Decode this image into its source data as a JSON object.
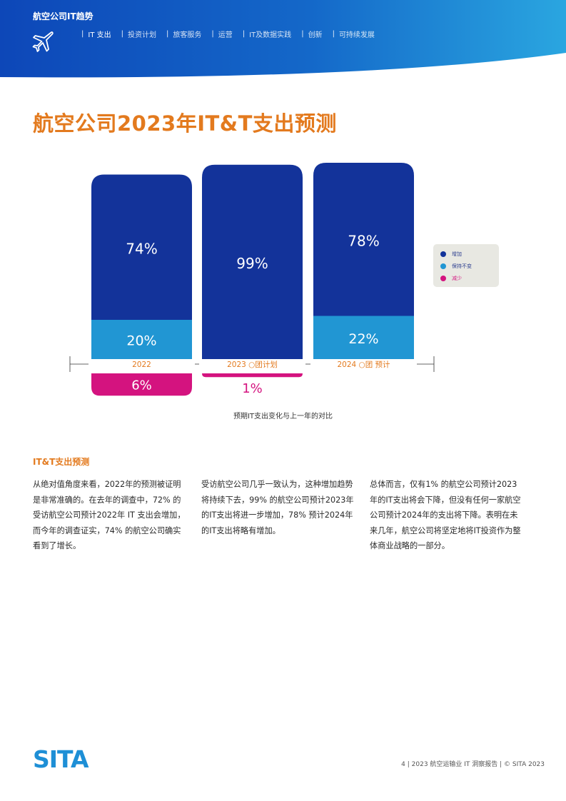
{
  "header": {
    "section_title": "航空公司IT趋势",
    "nav": [
      {
        "label": "IT 支出"
      },
      {
        "label": "投资计划"
      },
      {
        "label": "旅客服务"
      },
      {
        "label": "运营"
      },
      {
        "label": "IT及数据实践"
      },
      {
        "label": "创新"
      },
      {
        "label": "可持续发展"
      }
    ],
    "colors": {
      "gradient_left": "#0d47b8",
      "gradient_right": "#2aa6e0"
    }
  },
  "page_title": "航空公司2023年IT&T支出预测",
  "chart_data": {
    "type": "bar",
    "stacked": true,
    "categories": [
      "2022",
      "2023 ○团计划",
      "2024 ○团 预计"
    ],
    "series": [
      {
        "name": "增加",
        "color": "#13339a",
        "values": [
          74,
          99,
          78
        ],
        "labels": [
          "74%",
          "99%",
          "78%"
        ]
      },
      {
        "name": "保持不变",
        "color": "#2196d3",
        "values": [
          20,
          0,
          22
        ],
        "labels": [
          "20%",
          "",
          "22%"
        ]
      },
      {
        "name": "减少",
        "color": "#d4137f",
        "values": [
          6,
          1,
          0
        ],
        "labels": [
          "6%",
          "1%",
          ""
        ]
      }
    ],
    "legend": {
      "position": "right",
      "entries": [
        "增加",
        "保持不变",
        "减少"
      ]
    },
    "caption": "预期IT支出变化与上一年的对比",
    "category_label_color": "#e37a1e"
  },
  "body": {
    "heading": "IT&T支出预测",
    "columns": [
      "从绝对值角度来看，2022年的预测被证明是非常准确的。在去年的调查中，72% 的受访航空公司预计2022年 IT 支出会增加，而今年的调查证实，74% 的航空公司确实看到了增长。",
      "受访航空公司几乎一致认为，这种增加趋势将持续下去，99% 的航空公司预计2023年的IT支出将进一步增加，78% 预计2024年的IT支出将略有增加。",
      "总体而言，仅有1% 的航空公司预计2023年的IT支出将会下降，但没有任何一家航空公司预计2024年的支出将下降。表明在未来几年，航空公司将坚定地将IT投资作为整体商业战略的一部分。"
    ]
  },
  "footer": {
    "logo_text": "SITA",
    "text": "4 | 2023 航空运输业 IT 洞察报告 | © SITA 2023",
    "logo_color": "#1e8fd6"
  }
}
